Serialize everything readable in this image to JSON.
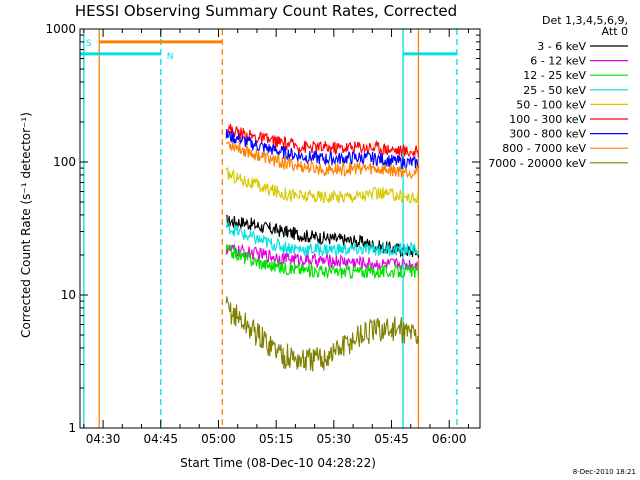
{
  "chart_data": {
    "type": "line",
    "title": "HESSI Observing Summary Count Rates, Corrected",
    "xlabel": "Start Time (08-Dec-10 04:28:22)",
    "ylabel": "Corrected Count Rate (s⁻¹ detector⁻¹)",
    "yscale": "log",
    "ylim": [
      1,
      1000
    ],
    "xlim": [
      "04:24",
      "06:08"
    ],
    "x_ticks": [
      "04:30",
      "04:45",
      "05:00",
      "05:15",
      "05:30",
      "05:45",
      "06:00"
    ],
    "y_ticks": [
      "1",
      "10",
      "100",
      "1000"
    ],
    "legend_header": [
      "Det 1,3,4,5,6,9,",
      "Att 0"
    ],
    "legend_position": "right",
    "grid": false,
    "x": [
      "05:02",
      "05:07",
      "05:12",
      "05:17",
      "05:22",
      "05:27",
      "05:32",
      "05:37",
      "05:42",
      "05:47",
      "05:52"
    ],
    "series": [
      {
        "name": "3 - 6 keV",
        "color": "#000000",
        "values": [
          36,
          35,
          32,
          30,
          28,
          27,
          26,
          25,
          23,
          22,
          21
        ]
      },
      {
        "name": "6 - 12 keV",
        "color": "#e000e0",
        "values": [
          22,
          21,
          20,
          19,
          18.5,
          18,
          18,
          17.5,
          17,
          17,
          17
        ]
      },
      {
        "name": "12 - 25 keV",
        "color": "#00e000",
        "values": [
          22,
          19,
          17,
          16,
          15.5,
          15,
          15,
          15,
          15,
          15,
          15
        ]
      },
      {
        "name": "25 - 50 keV",
        "color": "#00e0e0",
        "values": [
          33,
          28,
          25,
          23,
          22,
          22,
          22,
          22,
          22,
          22,
          22
        ]
      },
      {
        "name": "50 - 100 keV",
        "color": "#d8c800",
        "values": [
          82,
          72,
          63,
          58,
          55,
          55,
          55,
          56,
          58,
          56,
          52
        ]
      },
      {
        "name": "100 - 300 keV",
        "color": "#ff0000",
        "values": [
          180,
          160,
          148,
          138,
          130,
          128,
          128,
          130,
          128,
          122,
          118
        ]
      },
      {
        "name": "300 - 800 keV",
        "color": "#0000ff",
        "values": [
          160,
          142,
          128,
          118,
          110,
          106,
          106,
          108,
          105,
          100,
          98
        ]
      },
      {
        "name": "800 - 7000 keV",
        "color": "#ff8000",
        "values": [
          140,
          122,
          108,
          98,
          92,
          88,
          88,
          90,
          88,
          86,
          84
        ]
      },
      {
        "name": "7000 - 20000 keV",
        "color": "#808000",
        "values": [
          8,
          6,
          4.5,
          3.5,
          3.2,
          3.3,
          4,
          5,
          5.5,
          5.5,
          5
        ]
      }
    ],
    "attenuator_state": {
      "labels": [
        "S",
        "N"
      ],
      "value": 800,
      "color": "#ff8000"
    },
    "spacecraft_state": {
      "value": 650,
      "color": "#00e0e0"
    },
    "markers": {
      "solid_cyan": [
        "04:25",
        "05:48"
      ],
      "dashed_cyan": [
        "04:45",
        "06:02"
      ],
      "solid_orange": [
        "04:29",
        "05:52"
      ],
      "dashed_orange": [
        "05:01"
      ]
    },
    "footer": "8-Dec-2010 18:21"
  }
}
